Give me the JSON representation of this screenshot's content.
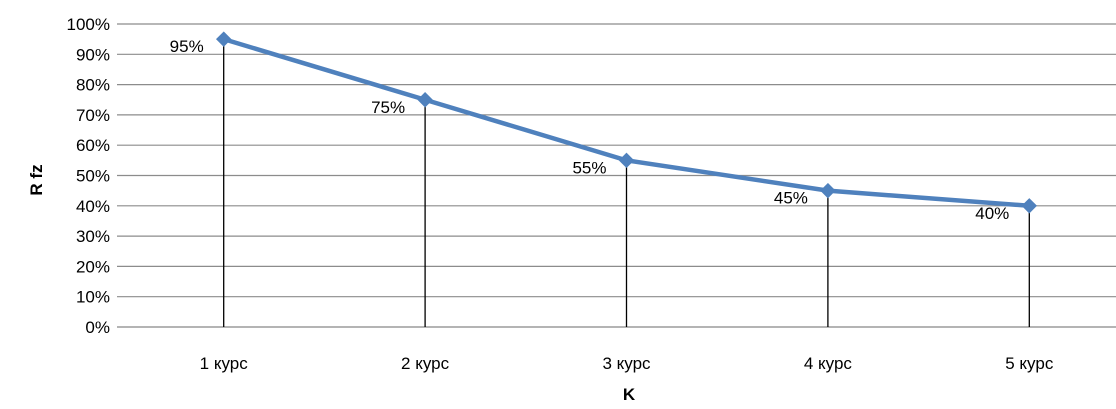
{
  "chart_data": {
    "type": "line",
    "title": "",
    "xlabel": "K",
    "ylabel": "R fz",
    "categories": [
      "1 курс",
      "2 курс",
      "3 курс",
      "4 курс",
      "5 курс"
    ],
    "series": [
      {
        "values": [
          95,
          75,
          55,
          45,
          40
        ],
        "labels": [
          "95%",
          "75%",
          "55%",
          "45%",
          "40%"
        ],
        "color": "#4F81BD",
        "marker": "diamond"
      }
    ],
    "yticks": [
      "0%",
      "10%",
      "20%",
      "30%",
      "40%",
      "50%",
      "60%",
      "70%",
      "80%",
      "90%",
      "100%"
    ],
    "ylim": [
      0,
      100
    ],
    "grid": true,
    "drop_lines": true,
    "legend": "none"
  }
}
